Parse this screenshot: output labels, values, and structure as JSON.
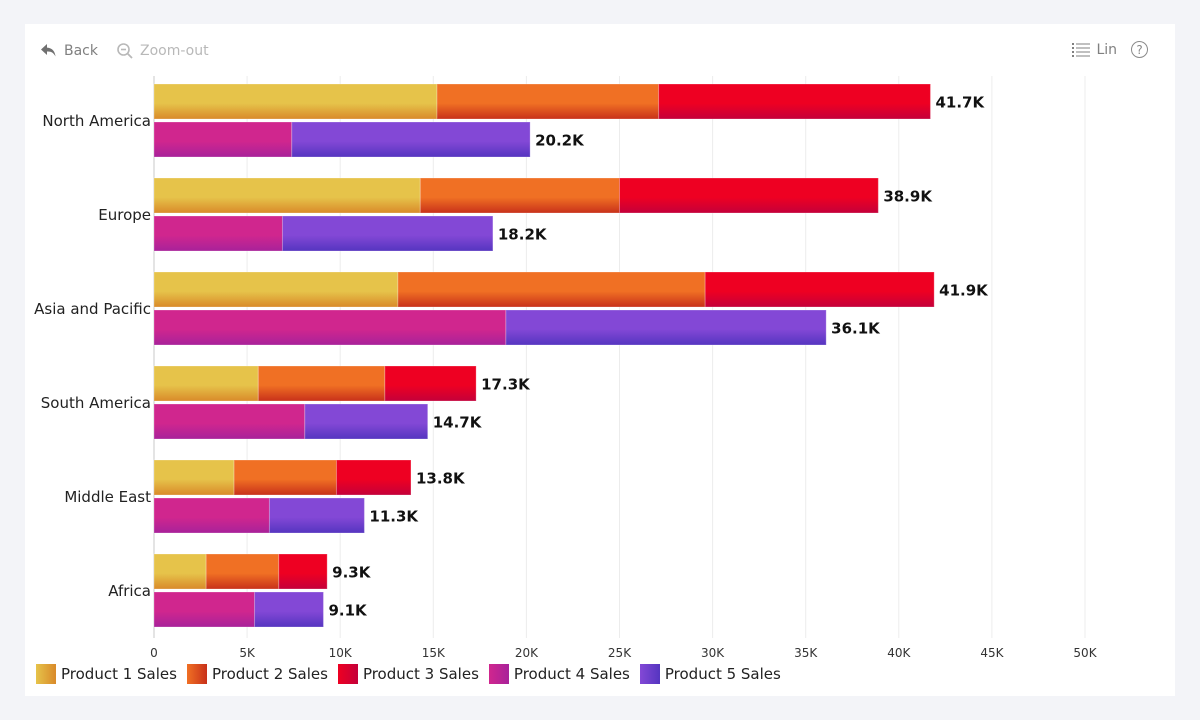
{
  "toolbar": {
    "back_label": "Back",
    "back_icon": "undo-arrow-icon",
    "zoom_out_label": "Zoom-out",
    "zoom_out_icon": "magnifier-minus-icon",
    "scale_label": "Lin",
    "scale_icon": "list-icon",
    "help_icon": "question-circle-icon",
    "help_glyph": "?"
  },
  "colors": {
    "background": "#f3f4f8",
    "card": "#ffffff",
    "gridline": "#ececec",
    "axis": "#c8c8c8",
    "label_text": "#222222",
    "value_text": "#111111"
  },
  "chart_data": {
    "type": "bar",
    "orientation": "horizontal",
    "stacked": true,
    "title": "",
    "xlabel": "",
    "ylabel": "",
    "categories": [
      "North America",
      "Europe",
      "Asia and Pacific",
      "South America",
      "Middle East",
      "Africa"
    ],
    "xlim": [
      0,
      50000
    ],
    "xticks": [
      0,
      5000,
      10000,
      15000,
      20000,
      25000,
      30000,
      35000,
      40000,
      45000,
      50000
    ],
    "xtick_labels": [
      "0",
      "5K",
      "10K",
      "15K",
      "20K",
      "25K",
      "30K",
      "35K",
      "40K",
      "45K",
      "50K"
    ],
    "grid": true,
    "legend_position": "bottom-left",
    "stacks": [
      {
        "name": "stack-a",
        "series": [
          "Product 1 Sales",
          "Product 2 Sales",
          "Product 3 Sales"
        ],
        "totals_labels": [
          "41.7K",
          "38.9K",
          "41.9K",
          "17.3K",
          "13.8K",
          "9.3K"
        ]
      },
      {
        "name": "stack-b",
        "series": [
          "Product 4 Sales",
          "Product 5 Sales"
        ],
        "totals_labels": [
          "20.2K",
          "18.2K",
          "36.1K",
          "14.7K",
          "11.3K",
          "9.1K"
        ]
      }
    ],
    "series": [
      {
        "name": "Product 1 Sales",
        "stack": 0,
        "color_top": "#e6c34a",
        "color_bottom": "#d98a2a",
        "values": [
          15200,
          14300,
          13100,
          5600,
          4300,
          2800
        ]
      },
      {
        "name": "Product 2 Sales",
        "stack": 0,
        "color_top": "#f07024",
        "color_bottom": "#c8311a",
        "values": [
          11900,
          10700,
          16500,
          6800,
          5500,
          3900
        ]
      },
      {
        "name": "Product 3 Sales",
        "stack": 0,
        "color_top": "#ee0022",
        "color_bottom": "#c4003a",
        "values": [
          14600,
          13900,
          12300,
          4900,
          4000,
          2600
        ]
      },
      {
        "name": "Product 4 Sales",
        "stack": 1,
        "color_top": "#d0268e",
        "color_bottom": "#a8229a",
        "values": [
          7400,
          6900,
          18900,
          8100,
          6200,
          5400
        ]
      },
      {
        "name": "Product 5 Sales",
        "stack": 1,
        "color_top": "#8348d6",
        "color_bottom": "#5535c0",
        "values": [
          12800,
          11300,
          17200,
          6600,
          5100,
          3700
        ]
      }
    ]
  }
}
